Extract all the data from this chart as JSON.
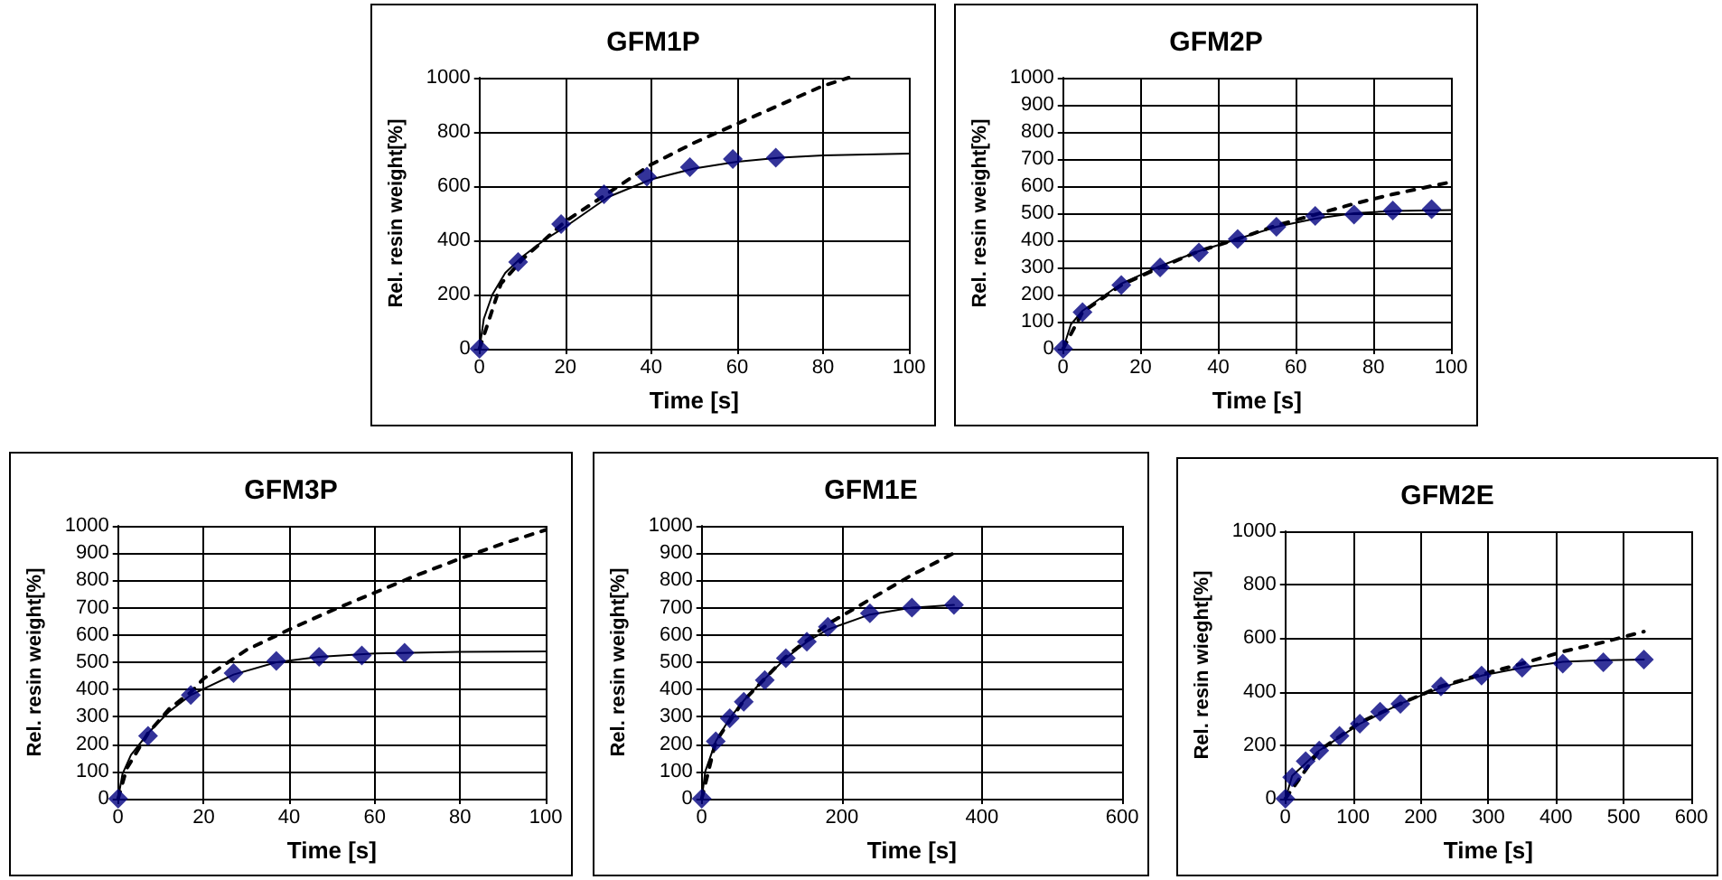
{
  "chart_data": [
    {
      "type": "scatter",
      "title": "GFM1P",
      "xlabel": "Time [s]",
      "ylabel": "Rel. resin weight[%]",
      "xlim": [
        0,
        100
      ],
      "xticks": [
        0,
        20,
        40,
        60,
        80,
        100
      ],
      "ylim": [
        0,
        1000
      ],
      "yticks": [
        0,
        200,
        400,
        600,
        800,
        1000
      ],
      "grid": true,
      "series": [
        {
          "color": "#000080",
          "marker": "diamond",
          "x": [
            0,
            9,
            19,
            29,
            39,
            49,
            59,
            69
          ],
          "values": [
            0,
            320,
            460,
            570,
            635,
            670,
            700,
            705
          ]
        },
        {
          "type": "line",
          "color": "#000000",
          "marker": "none",
          "line_style": "solid",
          "x": [
            0,
            1,
            3,
            6,
            10,
            15,
            20,
            30,
            40,
            50,
            60,
            70,
            80,
            100
          ],
          "values": [
            0,
            110,
            200,
            280,
            340,
            400,
            450,
            560,
            625,
            665,
            690,
            705,
            713,
            720
          ]
        },
        {
          "type": "line",
          "color": "#000000",
          "marker": "none",
          "line_style": "dashed",
          "x": [
            0,
            5,
            10,
            20,
            30,
            40,
            50,
            60,
            70,
            80,
            86
          ],
          "values": [
            0,
            240,
            330,
            470,
            575,
            680,
            760,
            830,
            900,
            970,
            1000
          ]
        }
      ]
    },
    {
      "type": "scatter",
      "title": "GFM2P",
      "xlabel": "Time [s]",
      "ylabel": "Rel. resin weight[%]",
      "xlim": [
        0,
        100
      ],
      "xticks": [
        0,
        20,
        40,
        60,
        80,
        100
      ],
      "ylim": [
        0,
        1000
      ],
      "yticks": [
        0,
        100,
        200,
        300,
        400,
        500,
        600,
        700,
        800,
        900,
        1000
      ],
      "grid": true,
      "series": [
        {
          "color": "#000080",
          "marker": "diamond",
          "x": [
            0,
            5,
            15,
            25,
            35,
            45,
            55,
            65,
            75,
            85,
            95
          ],
          "values": [
            0,
            135,
            235,
            300,
            355,
            405,
            450,
            490,
            495,
            510,
            515
          ]
        },
        {
          "type": "line",
          "color": "#000000",
          "marker": "none",
          "line_style": "solid",
          "x": [
            0,
            2,
            5,
            15,
            25,
            35,
            45,
            55,
            65,
            75,
            85,
            100
          ],
          "values": [
            0,
            90,
            140,
            240,
            305,
            360,
            405,
            450,
            480,
            500,
            508,
            512
          ]
        },
        {
          "type": "line",
          "color": "#000000",
          "marker": "none",
          "line_style": "dashed",
          "x": [
            0,
            5,
            15,
            25,
            35,
            45,
            55,
            65,
            75,
            85,
            100
          ],
          "values": [
            0,
            135,
            235,
            300,
            360,
            405,
            455,
            495,
            535,
            570,
            615
          ]
        }
      ]
    },
    {
      "type": "scatter",
      "title": "GFM3P",
      "xlabel": "Time [s]",
      "ylabel": "Rel. resin weight[%]",
      "xlim": [
        0,
        100
      ],
      "xticks": [
        0,
        20,
        40,
        60,
        80,
        100
      ],
      "ylim": [
        0,
        1000
      ],
      "yticks": [
        0,
        100,
        200,
        300,
        400,
        500,
        600,
        700,
        800,
        900,
        1000
      ],
      "grid": true,
      "series": [
        {
          "color": "#000080",
          "marker": "diamond",
          "x": [
            0,
            7,
            17,
            27,
            37,
            47,
            57,
            67
          ],
          "values": [
            0,
            230,
            380,
            460,
            505,
            520,
            525,
            535
          ]
        },
        {
          "type": "line",
          "color": "#000000",
          "marker": "none",
          "line_style": "solid",
          "x": [
            0,
            1,
            3,
            7,
            12,
            17,
            27,
            37,
            47,
            60,
            80,
            100
          ],
          "values": [
            0,
            90,
            160,
            240,
            320,
            380,
            455,
            500,
            520,
            532,
            538,
            540
          ]
        },
        {
          "type": "line",
          "color": "#000000",
          "marker": "none",
          "line_style": "dashed",
          "x": [
            0,
            2,
            7,
            12,
            17,
            20,
            30,
            40,
            50,
            60,
            70,
            80,
            90,
            100
          ],
          "values": [
            0,
            110,
            240,
            330,
            390,
            440,
            545,
            620,
            690,
            755,
            820,
            880,
            935,
            985
          ]
        }
      ]
    },
    {
      "type": "scatter",
      "title": "GFM1E",
      "xlabel": "Time [s]",
      "ylabel": "Rel. resin weight[%]",
      "xlim": [
        0,
        600
      ],
      "xticks": [
        0,
        200,
        400,
        600
      ],
      "ylim": [
        0,
        1000
      ],
      "yticks": [
        0,
        100,
        200,
        300,
        400,
        500,
        600,
        700,
        800,
        900,
        1000
      ],
      "grid": true,
      "series": [
        {
          "color": "#000080",
          "marker": "diamond",
          "x": [
            0,
            20,
            40,
            60,
            90,
            120,
            150,
            180,
            240,
            300,
            360
          ],
          "values": [
            0,
            210,
            295,
            355,
            435,
            515,
            575,
            630,
            680,
            700,
            710
          ]
        },
        {
          "type": "line",
          "color": "#000000",
          "marker": "none",
          "line_style": "solid",
          "x": [
            0,
            5,
            20,
            40,
            60,
            90,
            120,
            150,
            180,
            240,
            300,
            360
          ],
          "values": [
            0,
            100,
            210,
            295,
            360,
            440,
            515,
            575,
            620,
            675,
            700,
            710
          ]
        },
        {
          "type": "line",
          "color": "#000000",
          "marker": "none",
          "line_style": "dashed",
          "x": [
            0,
            20,
            60,
            120,
            180,
            240,
            300,
            360
          ],
          "values": [
            0,
            210,
            360,
            520,
            640,
            730,
            820,
            900
          ]
        }
      ]
    },
    {
      "type": "scatter",
      "title": "GFM2E",
      "xlabel": "Time [s]",
      "ylabel": "Rel. resin wieght[%]",
      "xlim": [
        0,
        600
      ],
      "xticks": [
        0,
        100,
        200,
        300,
        400,
        500,
        600
      ],
      "ylim": [
        0,
        1000
      ],
      "yticks": [
        0,
        200,
        400,
        600,
        800,
        1000
      ],
      "grid": true,
      "series": [
        {
          "color": "#000080",
          "marker": "diamond",
          "x": [
            0,
            10,
            30,
            50,
            80,
            110,
            140,
            170,
            230,
            290,
            350,
            410,
            470,
            530
          ],
          "values": [
            0,
            80,
            140,
            180,
            235,
            280,
            325,
            355,
            420,
            460,
            490,
            505,
            510,
            520
          ]
        },
        {
          "type": "line",
          "color": "#000000",
          "marker": "none",
          "line_style": "solid",
          "x": [
            0,
            10,
            50,
            110,
            170,
            230,
            290,
            350,
            410,
            470,
            530
          ],
          "values": [
            0,
            85,
            180,
            280,
            355,
            415,
            460,
            490,
            512,
            518,
            520
          ]
        },
        {
          "type": "line",
          "color": "#000000",
          "marker": "none",
          "line_style": "dashed",
          "x": [
            0,
            50,
            110,
            170,
            230,
            290,
            350,
            410,
            470,
            530
          ],
          "values": [
            0,
            180,
            285,
            355,
            420,
            465,
            505,
            550,
            585,
            625
          ]
        }
      ]
    }
  ]
}
